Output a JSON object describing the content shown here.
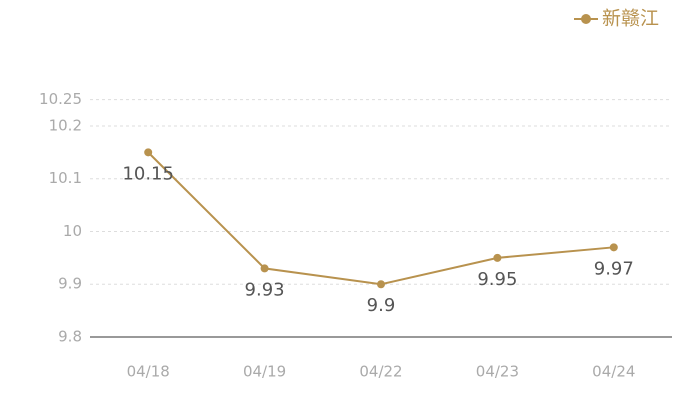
{
  "chart_data": {
    "type": "line",
    "categories": [
      "04/18",
      "04/19",
      "04/22",
      "04/23",
      "04/24"
    ],
    "series": [
      {
        "name": "新赣江",
        "color": "#b8924e",
        "values": [
          10.15,
          9.93,
          9.9,
          9.95,
          9.97
        ]
      }
    ],
    "ylim": [
      9.8,
      10.25
    ],
    "yticks": [
      9.8,
      9.9,
      10,
      10.1,
      10.2,
      10.25
    ],
    "grid": true
  }
}
